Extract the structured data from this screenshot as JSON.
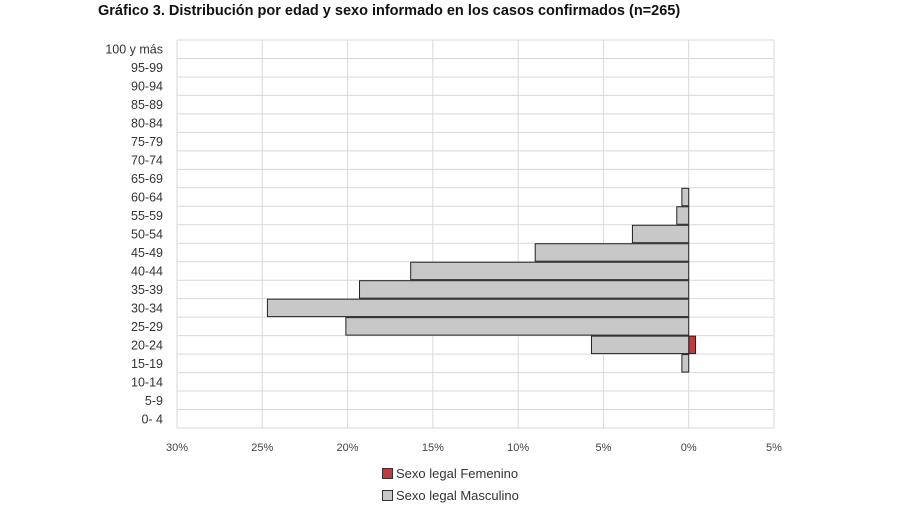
{
  "title": "Gráfico 3. Distribución por edad y sexo informado en los casos confirmados (n=265)",
  "chart_data": {
    "type": "bar",
    "orientation": "horizontal",
    "stacked": true,
    "categories": [
      "100 y más",
      "95-99",
      "90-94",
      "85-89",
      "80-84",
      "75-79",
      "70-74",
      "65-69",
      "60-64",
      "55-59",
      "50-54",
      "45-49",
      "40-44",
      "35-39",
      "30-34",
      "25-29",
      "20-24",
      "15-19",
      "10-14",
      "5-9",
      "0- 4"
    ],
    "series": [
      {
        "name": "Sexo legal Femenino",
        "color": "#c0393b",
        "values": [
          0,
          0,
          0,
          0,
          0,
          0,
          0,
          0,
          0,
          0,
          0,
          0,
          0,
          0,
          0,
          0,
          0.4,
          0,
          0,
          0,
          0
        ]
      },
      {
        "name": "Sexo legal Masculino",
        "color": "#c8c8c8",
        "values": [
          0,
          0,
          0,
          0,
          0,
          0,
          0,
          0,
          -0.4,
          -0.7,
          -3.3,
          -9.0,
          -16.3,
          -19.3,
          -24.7,
          -20.1,
          -5.7,
          -0.4,
          0,
          0,
          0
        ]
      }
    ],
    "xlim": [
      -30,
      5
    ],
    "xticks": [
      -30,
      -25,
      -20,
      -15,
      -10,
      -5,
      0,
      5
    ],
    "xtick_labels": [
      "30%",
      "25%",
      "20%",
      "15%",
      "10%",
      "5%",
      "0%",
      "5%"
    ],
    "grid": true,
    "legend_position": "bottom"
  },
  "legend": {
    "female_label": "Sexo legal Femenino",
    "male_label": "Sexo legal Masculino"
  }
}
